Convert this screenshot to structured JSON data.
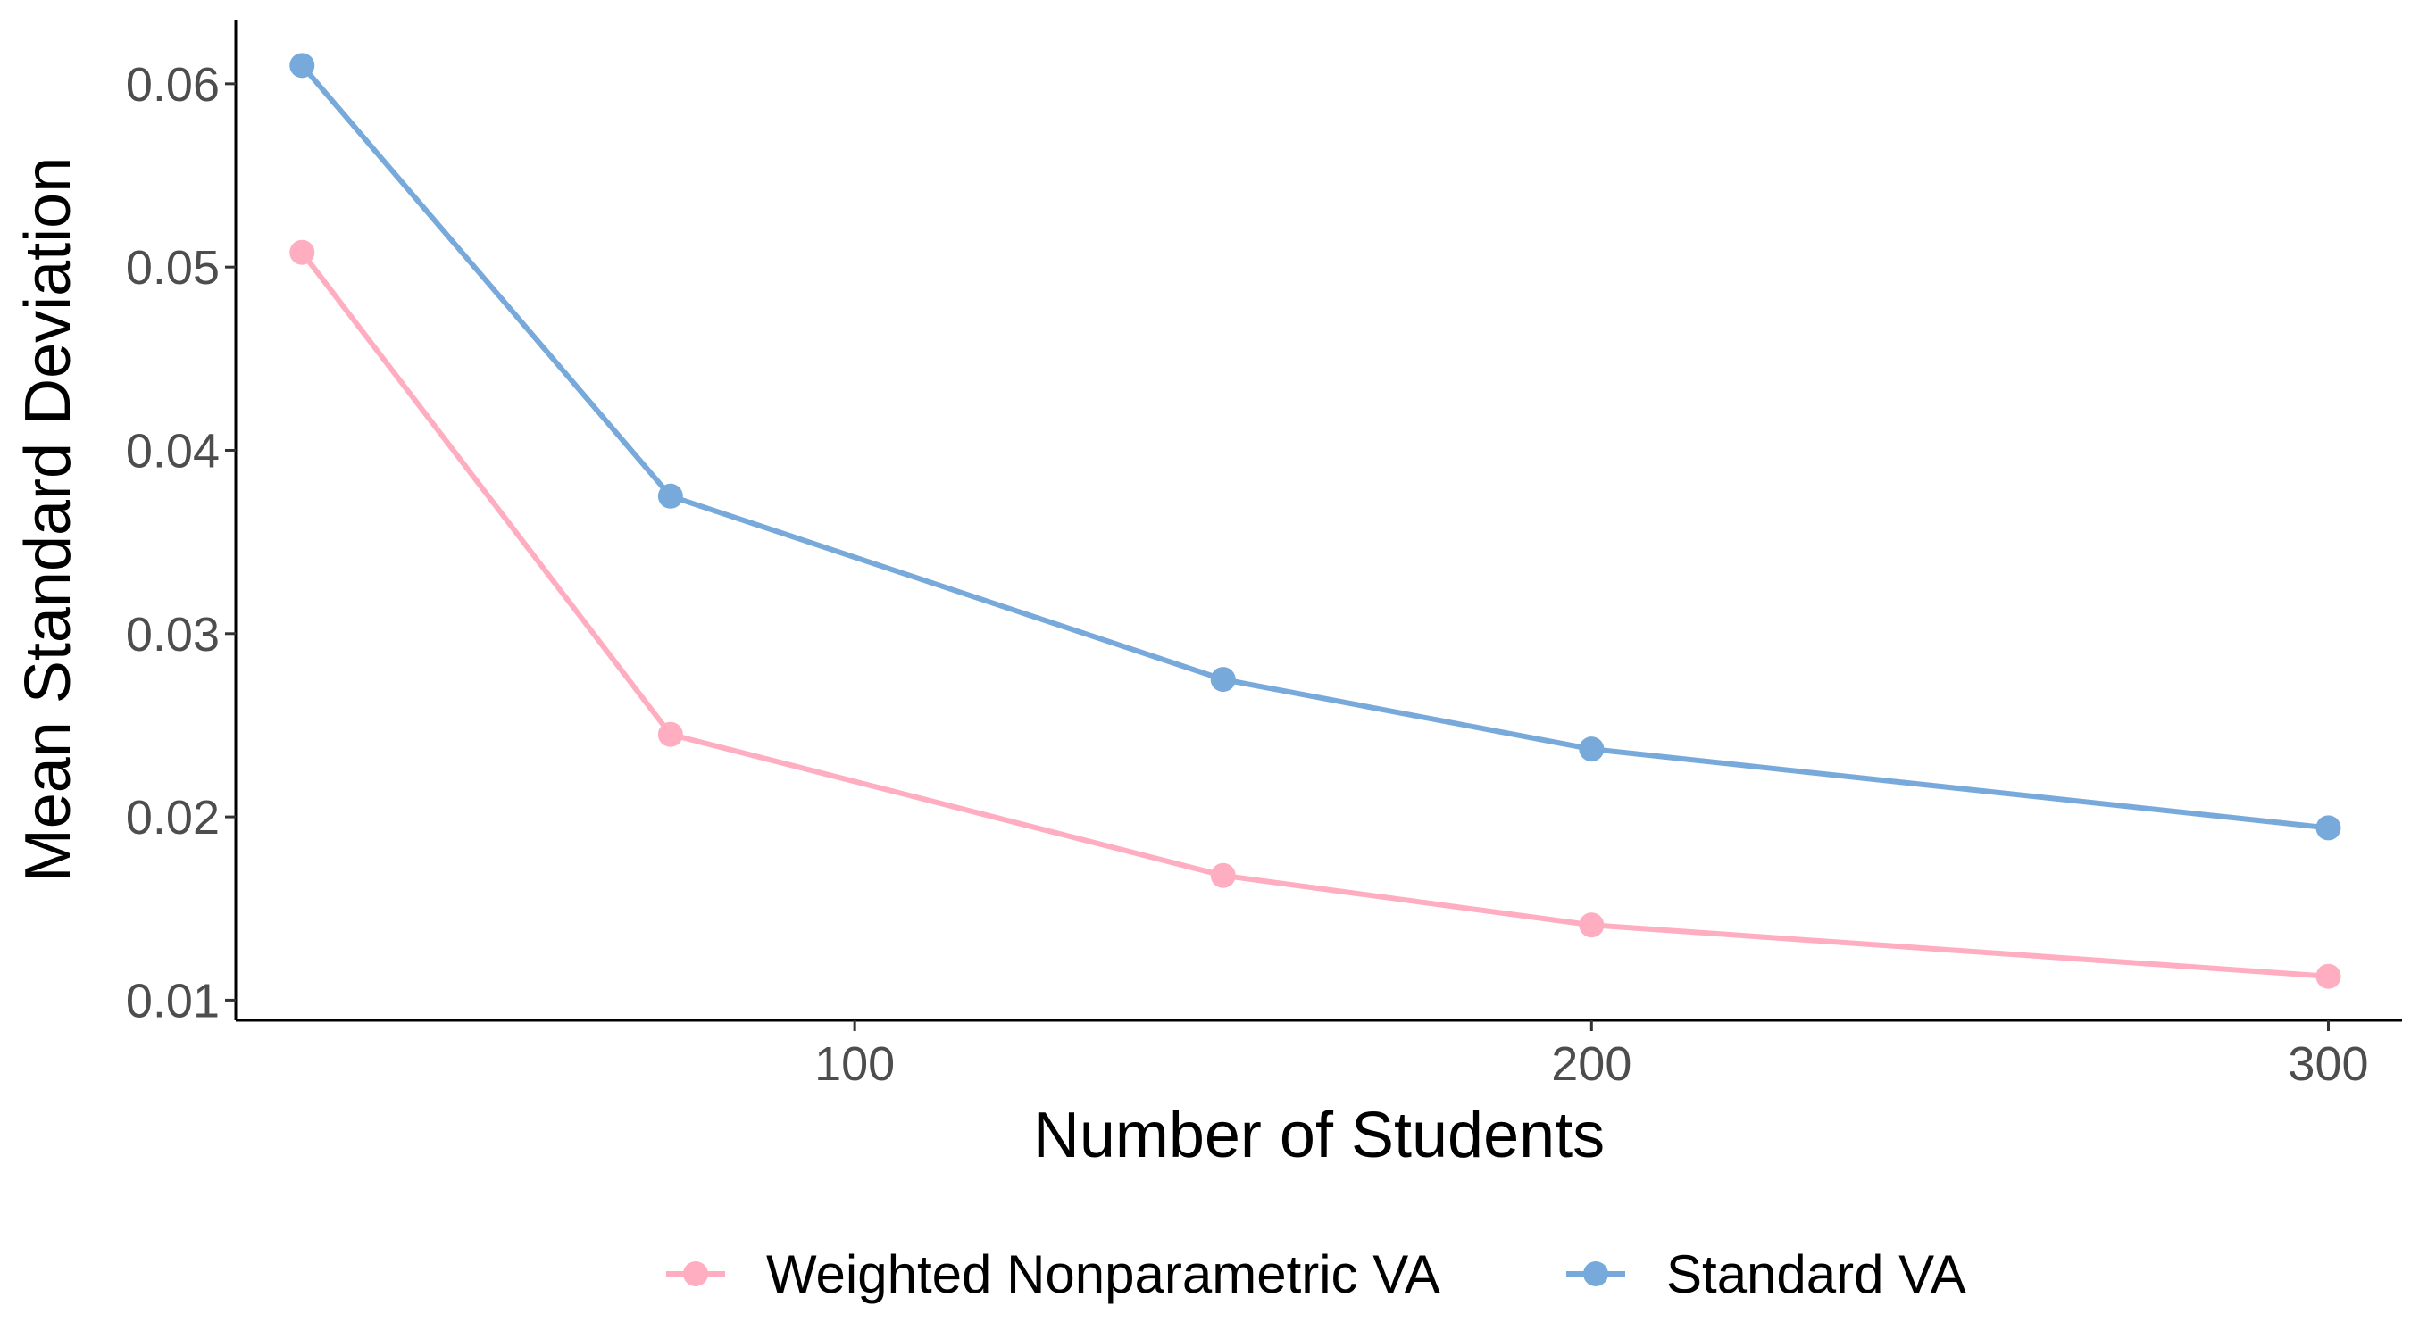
{
  "chart_data": {
    "type": "line",
    "title": "",
    "xlabel": "Number of Students",
    "ylabel": "Mean Standard Deviation",
    "x": [
      25,
      75,
      150,
      200,
      300
    ],
    "series": [
      {
        "name": "Weighted Nonparametric VA",
        "color": "#ffadc1",
        "values": [
          0.0508,
          0.0245,
          0.0168,
          0.0141,
          0.0113
        ]
      },
      {
        "name": "Standard VA",
        "color": "#78a9db",
        "values": [
          0.061,
          0.0375,
          0.0275,
          0.0237,
          0.0194
        ]
      }
    ],
    "xlim": [
      16,
      310
    ],
    "ylim": [
      0.0089,
      0.0635
    ],
    "xticks": [
      100,
      200,
      300
    ],
    "xtick_labels": [
      "100",
      "200",
      "300"
    ],
    "yticks": [
      0.01,
      0.02,
      0.03,
      0.04,
      0.05,
      0.06
    ],
    "ytick_labels": [
      "0.01",
      "0.02",
      "0.03",
      "0.04",
      "0.05",
      "0.06"
    ],
    "grid": false,
    "legend_position": "bottom"
  }
}
